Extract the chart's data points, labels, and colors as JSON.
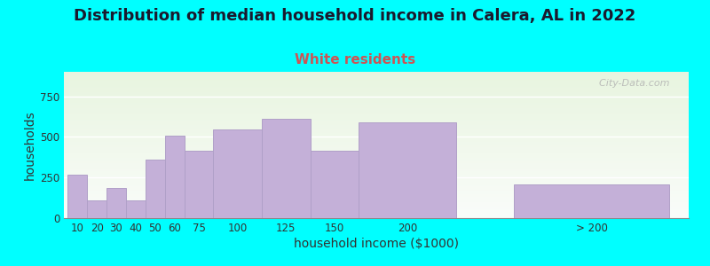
{
  "title": "Distribution of median household income in Calera, AL in 2022",
  "subtitle": "White residents",
  "xlabel": "household income ($1000)",
  "ylabel": "households",
  "background_color": "#00FFFF",
  "bar_color": "#c4b0d8",
  "bar_edge_color": "#b0a0c8",
  "categories": [
    "10",
    "20",
    "30",
    "40",
    "50",
    "60",
    "75",
    "100",
    "125",
    "150",
    "200",
    "> 200"
  ],
  "values": [
    270,
    110,
    185,
    110,
    360,
    505,
    415,
    545,
    610,
    415,
    590,
    210
  ],
  "left_edges": [
    0,
    10,
    20,
    30,
    40,
    50,
    60,
    75,
    100,
    125,
    150,
    230
  ],
  "widths": [
    10,
    10,
    10,
    10,
    10,
    10,
    15,
    25,
    25,
    25,
    50,
    80
  ],
  "ylim": [
    0,
    900
  ],
  "yticks": [
    0,
    250,
    500,
    750
  ],
  "title_fontsize": 13,
  "subtitle_fontsize": 11,
  "axis_label_fontsize": 10,
  "tick_fontsize": 8.5,
  "watermark": "  City-Data.com"
}
